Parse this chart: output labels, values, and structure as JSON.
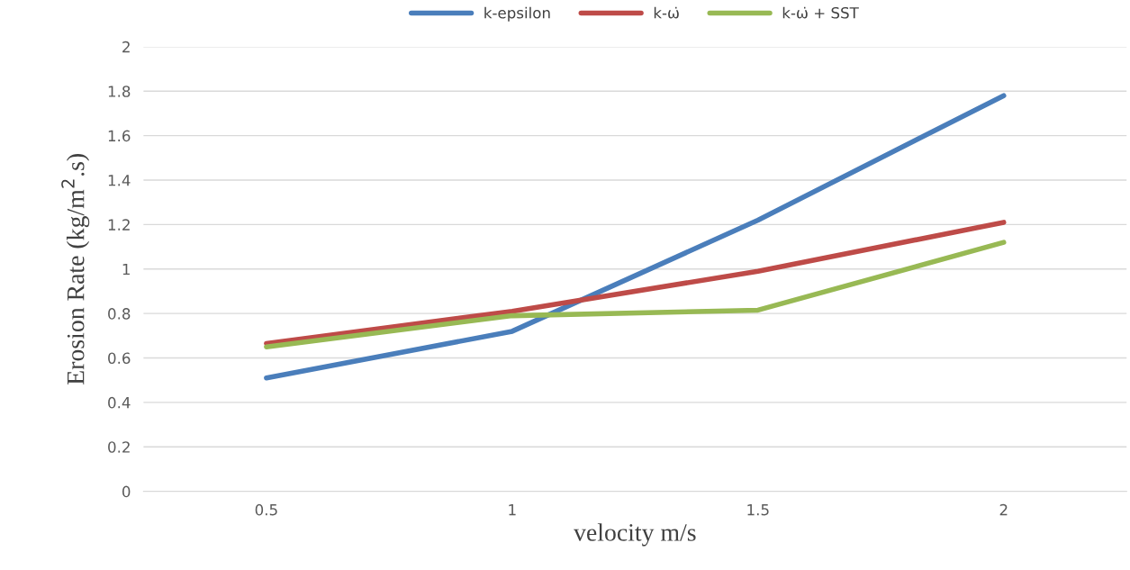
{
  "chart_data": {
    "type": "line",
    "xlabel": "velocity m/s",
    "ylabel": "Erosion Rate (kg/m$^{2}$.s)",
    "categories": [
      "0.5",
      "1",
      "1.5",
      "2"
    ],
    "series": [
      {
        "name": "k-epsilon",
        "color": "#4a7ebb",
        "values": [
          0.51,
          0.72,
          1.22,
          1.78
        ]
      },
      {
        "name": "k-ω̇",
        "color": "#be4b48",
        "values": [
          0.665,
          0.81,
          0.99,
          1.21
        ]
      },
      {
        "name": "k-ω̇ + SST",
        "color": "#98b954",
        "values": [
          0.65,
          0.79,
          0.815,
          1.12
        ]
      }
    ],
    "ylim": [
      0,
      2
    ],
    "yticks": [
      0,
      0.2,
      0.4,
      0.6,
      0.8,
      1,
      1.2,
      1.4,
      1.6,
      1.8,
      2
    ],
    "grid": "y",
    "legend": "top",
    "marker": "none",
    "line_style": "solid"
  }
}
